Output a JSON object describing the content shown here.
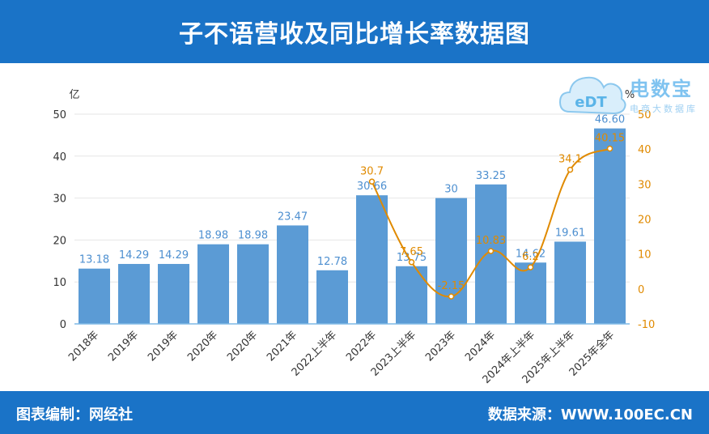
{
  "header": {
    "title": "子不语营收及同比增长率数据图"
  },
  "footer": {
    "left": "图表编制：网经社",
    "right": "数据来源：WWW.100EC.CN"
  },
  "logo": {
    "name": "电数宝",
    "sub": "电商大数据库",
    "icon_text": "eDT"
  },
  "colors": {
    "bar": "#5b9bd5",
    "line": "#e08a00",
    "header": "#1a73c7"
  },
  "chart_data": {
    "type": "bar+line",
    "title": "子不语营收及同比增长率数据图",
    "categories": [
      "2018年",
      "2019年",
      "2019年",
      "2020年",
      "2020年",
      "2021年",
      "2022上半年",
      "2022年",
      "2023上半年",
      "2023年",
      "2024年",
      "2024年上半年",
      "2025年上半年",
      "2025年全年"
    ],
    "series": [
      {
        "name": "营收",
        "unit": "亿",
        "axis": "left",
        "values": [
          13.18,
          14.29,
          14.29,
          18.98,
          18.98,
          23.47,
          12.78,
          30.66,
          13.75,
          30,
          33.25,
          14.62,
          19.61,
          46.6
        ],
        "labels": [
          "13.18",
          "14.29",
          "14.29",
          "18.98",
          "18.98",
          "23.47",
          "12.78",
          "30.66",
          "13.75",
          "30",
          "33.25",
          "14.62",
          "19.61",
          "46.60"
        ]
      },
      {
        "name": "同比增长率",
        "unit": "%",
        "axis": "right",
        "values": [
          null,
          null,
          null,
          null,
          null,
          null,
          null,
          30.7,
          7.65,
          -2.15,
          10.83,
          6.2,
          34.1,
          40.15
        ],
        "labels": [
          "",
          "",
          "",
          "",
          "",
          "",
          "",
          "30.7",
          "7.65",
          "-2.15",
          "10.83",
          "6.2",
          "34.1",
          "40.15"
        ]
      }
    ],
    "ylabel_left": "亿",
    "ylabel_right": "%",
    "ylim_left": [
      0,
      50
    ],
    "yticks_left": [
      0,
      10,
      20,
      30,
      40,
      50
    ],
    "ylim_right": [
      -10,
      50
    ],
    "yticks_right": [
      -10,
      0,
      10,
      20,
      30,
      40,
      50
    ]
  }
}
